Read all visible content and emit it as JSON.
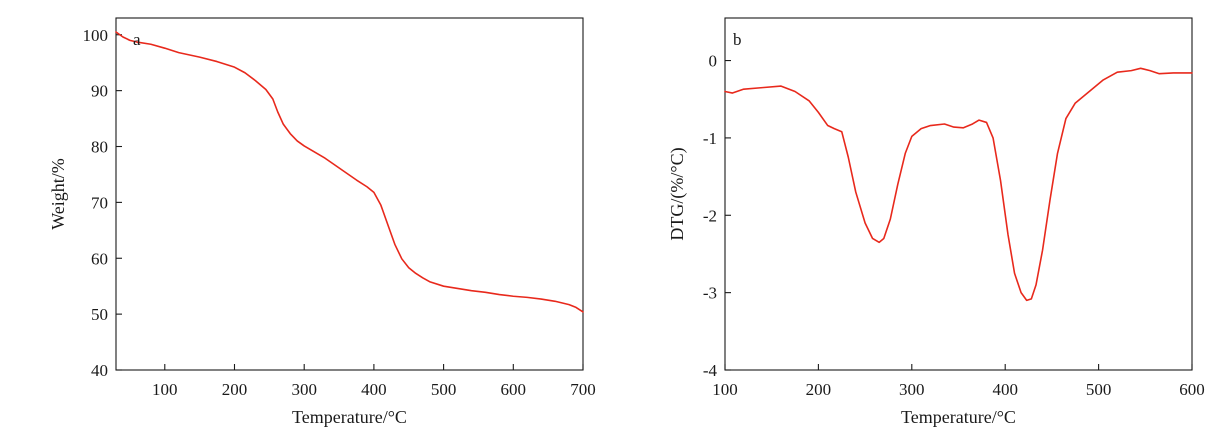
{
  "chart_data": [
    {
      "id": "a",
      "type": "line",
      "panel_label": "a",
      "xlabel": "Temperature/°C",
      "ylabel": "Weight/%",
      "xlim": [
        30,
        700
      ],
      "ylim": [
        40,
        103
      ],
      "xticks": [
        100,
        200,
        300,
        400,
        500,
        600,
        700
      ],
      "yticks": [
        40,
        50,
        60,
        70,
        80,
        90,
        100
      ],
      "line_color": "#e8291c",
      "grid": false,
      "series": [
        {
          "x": [
            30,
            40,
            50,
            60,
            80,
            100,
            120,
            150,
            175,
            200,
            215,
            230,
            245,
            255,
            262,
            270,
            280,
            290,
            300,
            315,
            330,
            345,
            360,
            375,
            390,
            400,
            410,
            420,
            430,
            440,
            450,
            460,
            470,
            480,
            500,
            520,
            540,
            560,
            580,
            600,
            620,
            640,
            660,
            680,
            690,
            700
          ],
          "y": [
            100.5,
            99.6,
            99.0,
            98.7,
            98.3,
            97.6,
            96.8,
            96.0,
            95.2,
            94.2,
            93.2,
            91.8,
            90.2,
            88.5,
            86.2,
            84.0,
            82.3,
            81.0,
            80.1,
            79.0,
            77.9,
            76.6,
            75.3,
            74.0,
            72.8,
            71.8,
            69.5,
            66.0,
            62.5,
            59.9,
            58.3,
            57.3,
            56.5,
            55.8,
            55.0,
            54.6,
            54.2,
            53.9,
            53.5,
            53.2,
            53.0,
            52.7,
            52.3,
            51.7,
            51.2,
            50.4
          ]
        }
      ]
    },
    {
      "id": "b",
      "type": "line",
      "panel_label": "b",
      "xlabel": "Temperature/°C",
      "ylabel": "DTG/(%/°C)",
      "xlim": [
        100,
        600
      ],
      "ylim": [
        -4,
        0.55
      ],
      "xticks": [
        100,
        200,
        300,
        400,
        500,
        600
      ],
      "yticks": [
        -4,
        -3,
        -2,
        -1,
        0
      ],
      "line_color": "#e8291c",
      "grid": false,
      "series": [
        {
          "x": [
            100,
            108,
            120,
            140,
            160,
            175,
            190,
            200,
            210,
            217,
            225,
            232,
            240,
            250,
            258,
            265,
            270,
            277,
            285,
            293,
            300,
            310,
            320,
            335,
            345,
            355,
            365,
            372,
            380,
            387,
            395,
            403,
            410,
            417,
            423,
            428,
            433,
            440,
            448,
            456,
            465,
            475,
            490,
            505,
            520,
            535,
            545,
            555,
            565,
            580,
            600
          ],
          "y": [
            -0.4,
            -0.42,
            -0.37,
            -0.35,
            -0.33,
            -0.4,
            -0.52,
            -0.67,
            -0.84,
            -0.88,
            -0.92,
            -1.25,
            -1.7,
            -2.1,
            -2.3,
            -2.35,
            -2.3,
            -2.05,
            -1.6,
            -1.2,
            -0.98,
            -0.88,
            -0.84,
            -0.82,
            -0.86,
            -0.87,
            -0.82,
            -0.77,
            -0.8,
            -1.0,
            -1.55,
            -2.25,
            -2.75,
            -3.0,
            -3.1,
            -3.08,
            -2.9,
            -2.45,
            -1.8,
            -1.2,
            -0.75,
            -0.55,
            -0.4,
            -0.25,
            -0.15,
            -0.13,
            -0.1,
            -0.13,
            -0.17,
            -0.16,
            -0.16
          ]
        }
      ]
    }
  ]
}
